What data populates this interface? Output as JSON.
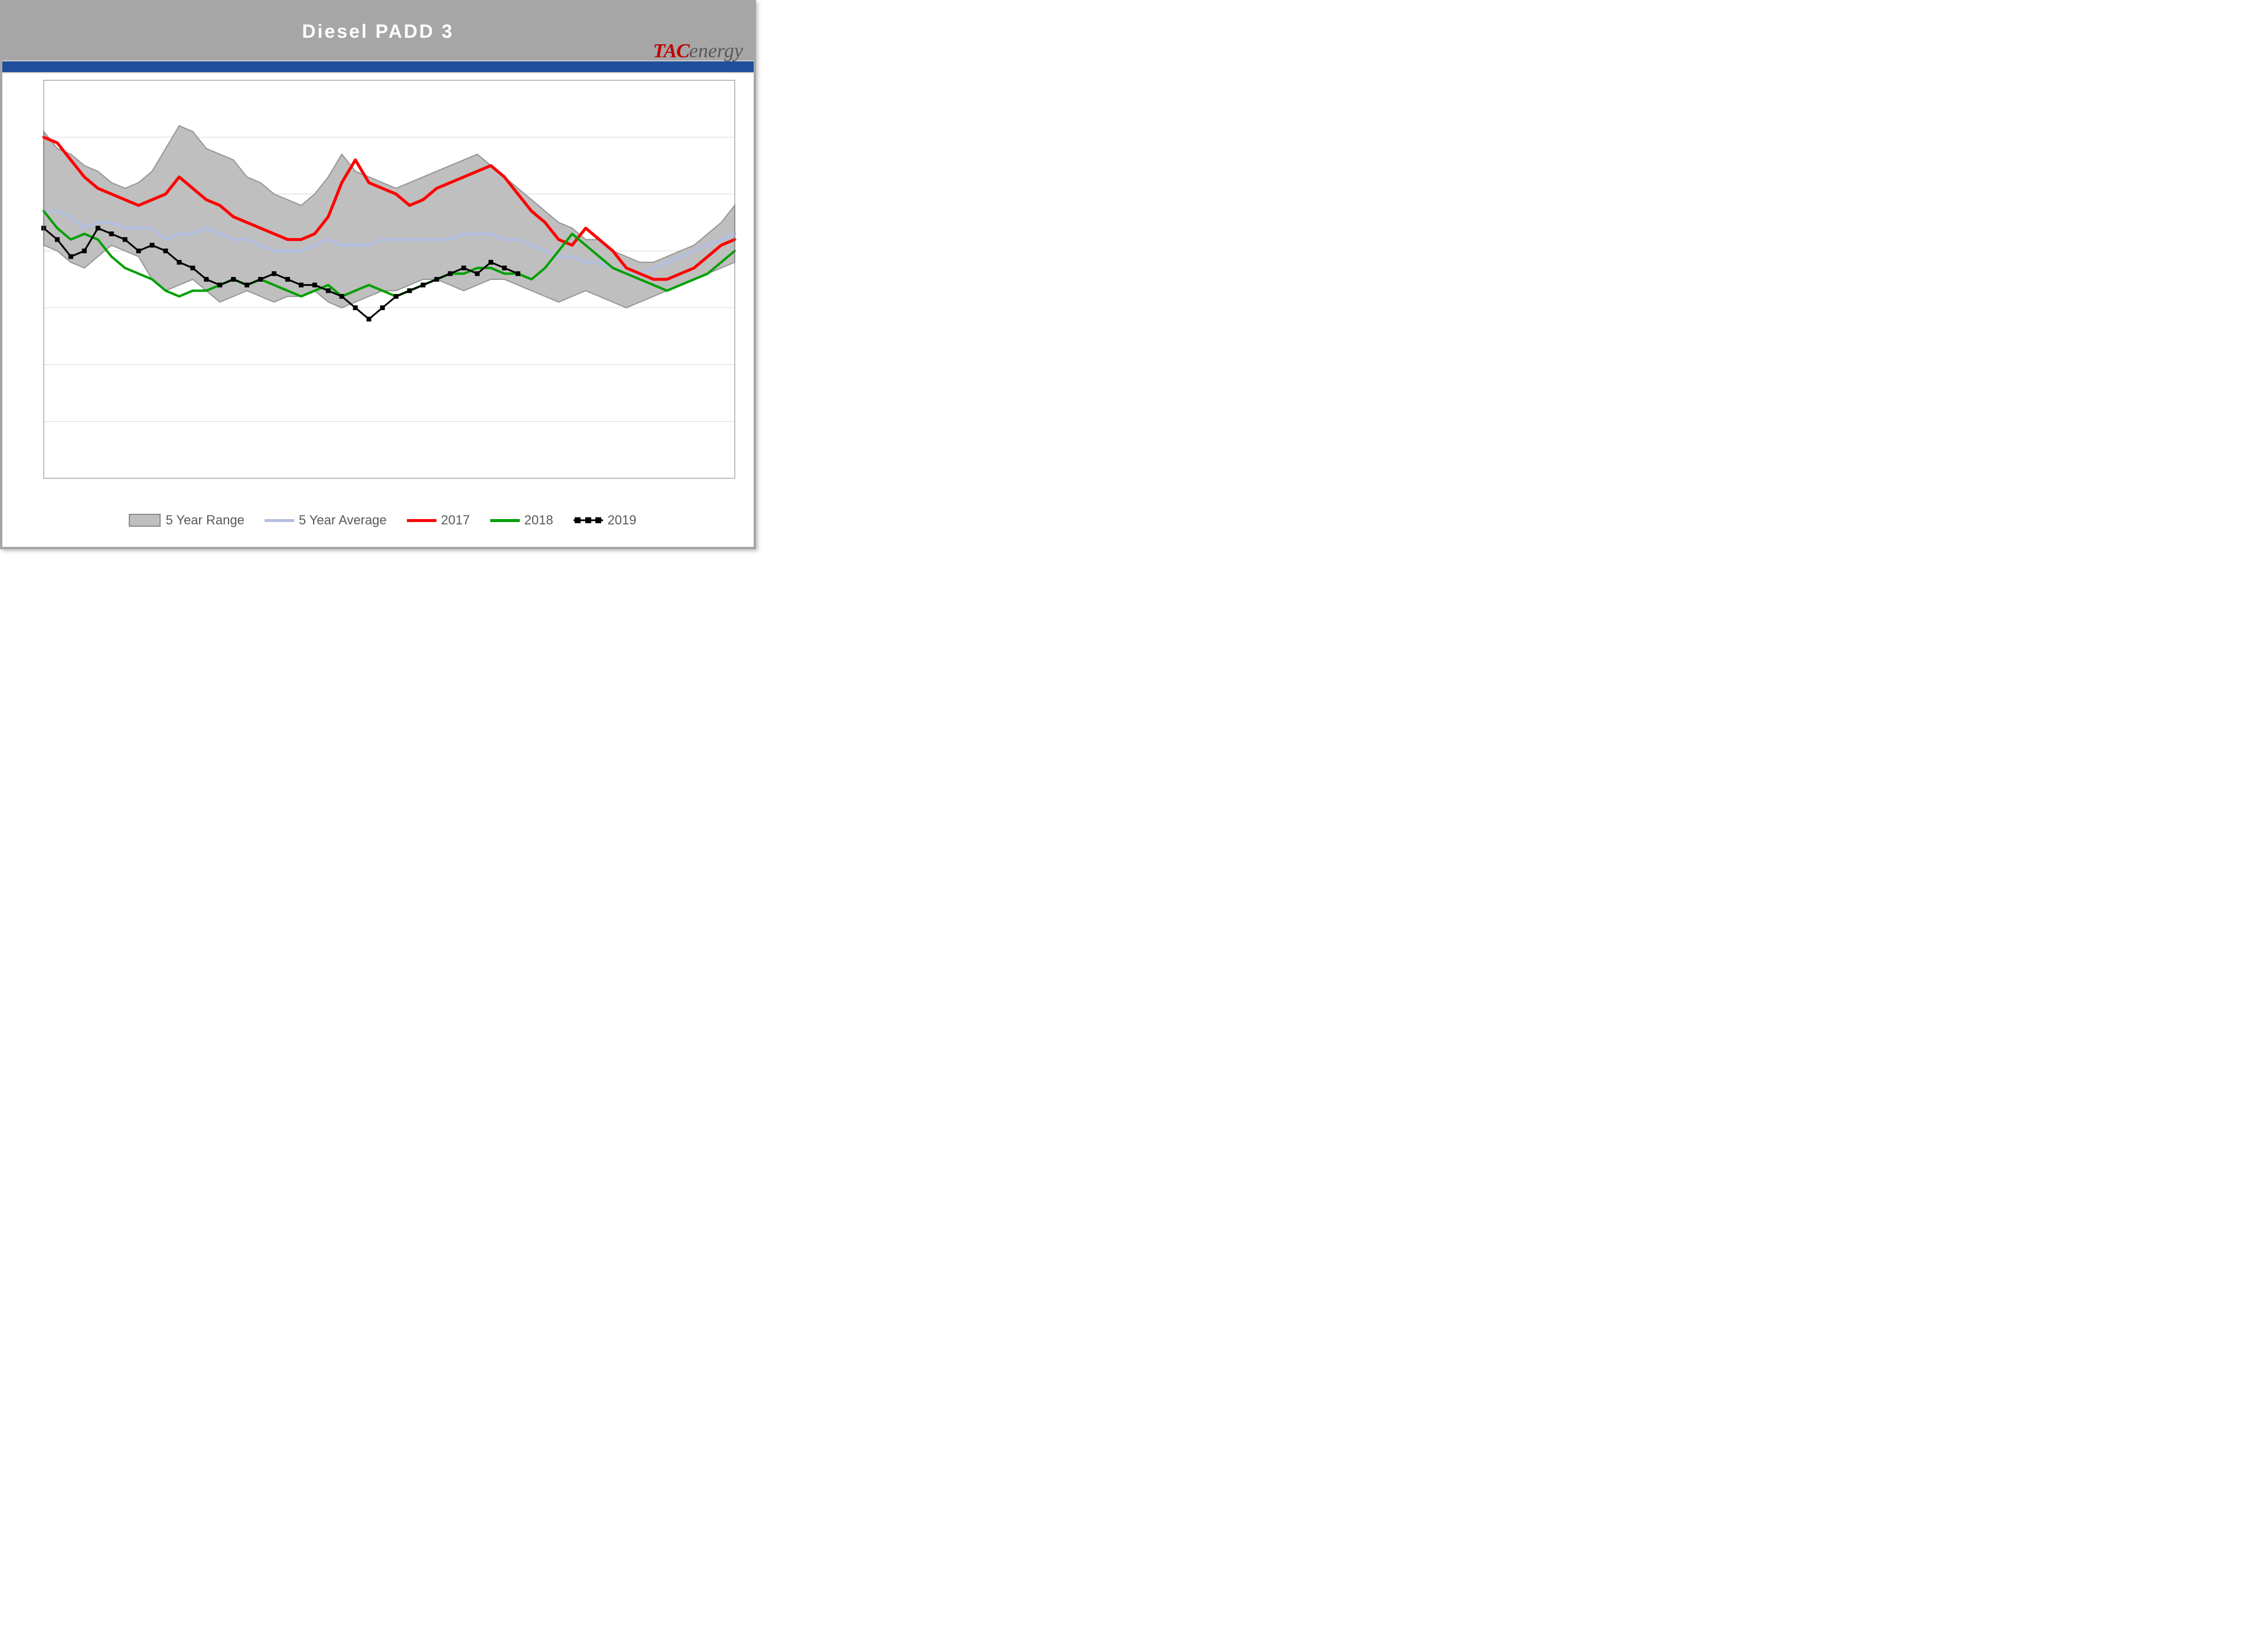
{
  "title": "Diesel  PADD  3",
  "logo": {
    "tac": "TAC",
    "energy": "energy"
  },
  "chart": {
    "type": "line-with-band",
    "n_weeks": 52,
    "ylim": [
      20,
      55
    ],
    "ytick_step": 5,
    "colors": {
      "background": "#ffffff",
      "range_fill": "#bfbfbf",
      "range_stroke": "#969696",
      "avg": "#b4bfe0",
      "y2017": "#ff0000",
      "y2018": "#00a000",
      "y2019": "#000000",
      "grid": "#d9d9d9",
      "axis": "#808080"
    },
    "line_widths": {
      "avg": 5,
      "y2017": 5,
      "y2018": 4,
      "y2019": 3
    },
    "marker": {
      "y2019": {
        "shape": "square",
        "size": 8,
        "fill": "#000000"
      }
    },
    "range_high": [
      50.5,
      49.0,
      48.5,
      47.5,
      47.0,
      46.0,
      45.5,
      46.0,
      47.0,
      49.0,
      51.0,
      50.5,
      49.0,
      48.5,
      48.0,
      46.5,
      46.0,
      45.0,
      44.5,
      44.0,
      45.0,
      46.5,
      48.5,
      47.0,
      46.5,
      46.0,
      45.5,
      46.0,
      46.5,
      47.0,
      47.5,
      48.0,
      48.5,
      47.5,
      46.5,
      45.5,
      44.5,
      43.5,
      42.5,
      42.0,
      41.0,
      41.0,
      40.0,
      39.5,
      39.0,
      39.0,
      39.5,
      40.0,
      40.5,
      41.5,
      42.5,
      44.0
    ],
    "range_low": [
      40.5,
      40.0,
      39.0,
      38.5,
      39.5,
      40.5,
      40.0,
      39.5,
      37.5,
      36.5,
      37.0,
      37.5,
      36.5,
      35.5,
      36.0,
      36.5,
      36.0,
      35.5,
      36.0,
      36.0,
      36.5,
      35.5,
      35.0,
      35.5,
      36.0,
      36.5,
      36.5,
      37.0,
      37.5,
      37.5,
      37.0,
      36.5,
      37.0,
      37.5,
      37.5,
      37.0,
      36.5,
      36.0,
      35.5,
      36.0,
      36.5,
      36.0,
      35.5,
      35.0,
      35.5,
      36.0,
      36.5,
      37.0,
      37.5,
      38.0,
      38.5,
      39.0
    ],
    "avg": [
      43.5,
      43.5,
      43.0,
      42.0,
      42.5,
      42.5,
      42.0,
      42.0,
      42.0,
      41.0,
      41.5,
      41.5,
      42.0,
      41.5,
      41.0,
      41.0,
      40.5,
      40.0,
      40.0,
      40.0,
      40.5,
      41.0,
      40.5,
      40.5,
      40.5,
      41.0,
      41.0,
      41.0,
      41.0,
      41.0,
      41.0,
      41.5,
      41.5,
      41.5,
      41.0,
      41.0,
      40.5,
      40.0,
      39.5,
      39.5,
      39.0,
      39.0,
      38.5,
      38.0,
      38.0,
      38.5,
      39.0,
      39.5,
      40.0,
      40.5,
      41.0,
      41.5
    ],
    "y2017": [
      50.0,
      49.5,
      48.0,
      46.5,
      45.5,
      45.0,
      44.5,
      44.0,
      44.5,
      45.0,
      46.5,
      45.5,
      44.5,
      44.0,
      43.0,
      42.5,
      42.0,
      41.5,
      41.0,
      41.0,
      41.5,
      43.0,
      46.0,
      48.0,
      46.0,
      45.5,
      45.0,
      44.0,
      44.5,
      45.5,
      46.0,
      46.5,
      47.0,
      47.5,
      46.5,
      45.0,
      43.5,
      42.5,
      41.0,
      40.5,
      42.0,
      41.0,
      40.0,
      38.5,
      38.0,
      37.5,
      37.5,
      38.0,
      38.5,
      39.5,
      40.5,
      41.0
    ],
    "y2018": [
      43.5,
      42.0,
      41.0,
      41.5,
      41.0,
      39.5,
      38.5,
      38.0,
      37.5,
      36.5,
      36.0,
      36.5,
      36.5,
      37.0,
      37.5,
      37.0,
      37.5,
      37.0,
      36.5,
      36.0,
      36.5,
      37.0,
      36.0,
      36.5,
      37.0,
      36.5,
      36.0,
      36.5,
      37.0,
      37.5,
      38.0,
      38.0,
      38.5,
      38.5,
      38.0,
      38.0,
      37.5,
      38.5,
      40.0,
      41.5,
      40.5,
      39.5,
      38.5,
      38.0,
      37.5,
      37.0,
      36.5,
      37.0,
      37.5,
      38.0,
      39.0,
      40.0
    ],
    "y2019": [
      42.0,
      41.0,
      39.5,
      40.0,
      42.0,
      41.5,
      41.0,
      40.0,
      40.5,
      40.0,
      39.0,
      38.5,
      37.5,
      37.0,
      37.5,
      37.0,
      37.5,
      38.0,
      37.5,
      37.0,
      37.0,
      36.5,
      36.0,
      35.0,
      34.0,
      35.0,
      36.0,
      36.5,
      37.0,
      37.5,
      38.0,
      38.5,
      38.0,
      39.0,
      38.5,
      38.0
    ],
    "legend": [
      {
        "key": "range",
        "label": "5 Year Range"
      },
      {
        "key": "avg",
        "label": "5 Year Average"
      },
      {
        "key": "y2017",
        "label": "2017"
      },
      {
        "key": "y2018",
        "label": "2018"
      },
      {
        "key": "y2019",
        "label": "2019"
      }
    ]
  }
}
